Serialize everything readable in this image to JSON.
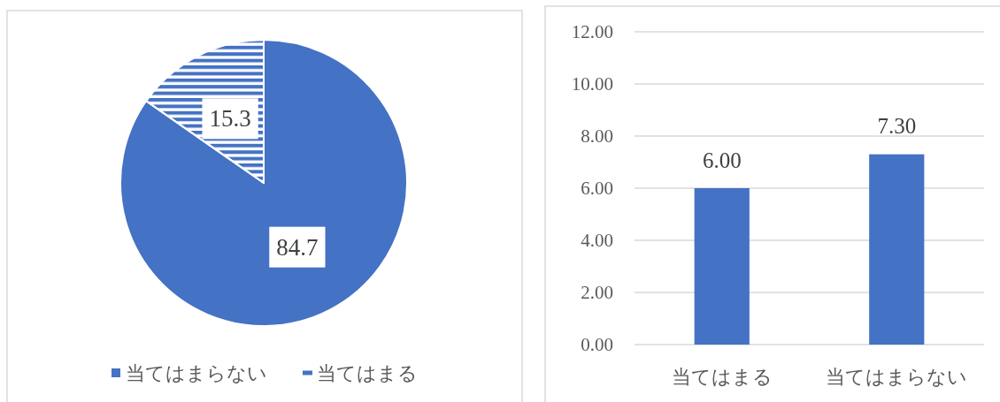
{
  "chart_data": [
    {
      "type": "pie",
      "categories": [
        "当てはまらない",
        "当てはまる"
      ],
      "values": [
        84.7,
        15.3
      ],
      "colors": [
        "#4472c4",
        "#4472c4"
      ],
      "data_labels": true,
      "legend": "bottom"
    },
    {
      "type": "bar",
      "categories": [
        "当てはまる",
        "当てはまらない"
      ],
      "values": [
        6.0,
        7.3
      ],
      "color": "#4472c4",
      "value_labels": [
        "6.00",
        "7.30"
      ],
      "ylim": [
        0,
        12
      ],
      "yticks": [
        {
          "value": 0,
          "label": "0.00"
        },
        {
          "value": 2,
          "label": "2.00"
        },
        {
          "value": 4,
          "label": "4.00"
        },
        {
          "value": 6,
          "label": "6.00"
        },
        {
          "value": 8,
          "label": "8.00"
        },
        {
          "value": 10,
          "label": "10.00"
        },
        {
          "value": 12,
          "label": "12.00"
        }
      ],
      "grid": "y"
    }
  ]
}
